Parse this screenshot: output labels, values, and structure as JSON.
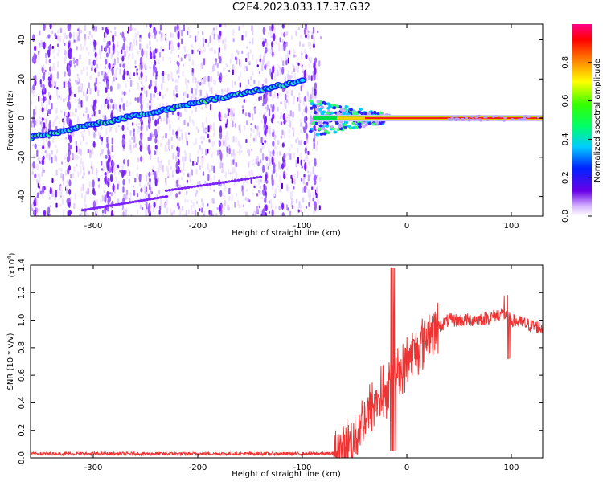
{
  "title": "C2E4.2023.033.17.37.G32",
  "chart_data": [
    {
      "type": "heatmap",
      "xlabel": "Height of straight line (km)",
      "ylabel": "Frequency (Hz)",
      "xlim": [
        -360,
        130
      ],
      "ylim": [
        -50,
        48
      ],
      "xticks": [
        -300,
        -200,
        -100,
        0,
        100
      ],
      "yticks": [
        -40,
        -20,
        0,
        20,
        40
      ],
      "colorbar": {
        "label": "Normalized spectral amplitude",
        "range": [
          0,
          1
        ],
        "ticks": [
          0.0,
          0.2,
          0.4,
          0.6,
          0.8
        ],
        "colormap": "rainbow (white/violet low → red high)"
      },
      "features": {
        "rising_trace": {
          "x": [
            -360,
            -100
          ],
          "y": [
            -10,
            19
          ]
        },
        "flat_trace": {
          "x": [
            -90,
            130
          ],
          "y": [
            0,
            0
          ]
        },
        "noise_region_end_x": -83
      }
    },
    {
      "type": "line",
      "xlabel": "Height of straight line (km)",
      "ylabel": "SNR (10 * v/v)",
      "y_multiplier_label": "(x10",
      "y_multiplier_exp": "4",
      "y_multiplier_close": ")",
      "xlim": [
        -360,
        130
      ],
      "ylim": [
        0,
        1.4
      ],
      "xticks": [
        -300,
        -200,
        -100,
        0,
        100
      ],
      "yticks": [
        0.0,
        0.2,
        0.4,
        0.6,
        0.8,
        1.0,
        1.2,
        1.4
      ],
      "line_color": "#ee3333",
      "series": [
        {
          "x": [
            -360,
            -300,
            -200,
            -100,
            -70,
            -60,
            -50,
            -40,
            -30,
            -20,
            -15,
            -10,
            -5,
            0,
            10,
            20,
            30,
            40,
            60,
            80,
            90,
            95,
            100,
            110,
            120,
            130
          ],
          "y": [
            0.03,
            0.03,
            0.03,
            0.03,
            0.03,
            0.06,
            0.15,
            0.3,
            0.4,
            0.5,
            0.6,
            0.65,
            0.6,
            0.7,
            0.8,
            0.9,
            0.95,
            1.0,
            1.0,
            1.02,
            1.05,
            1.03,
            1.0,
            0.98,
            0.96,
            0.94
          ]
        }
      ]
    }
  ]
}
